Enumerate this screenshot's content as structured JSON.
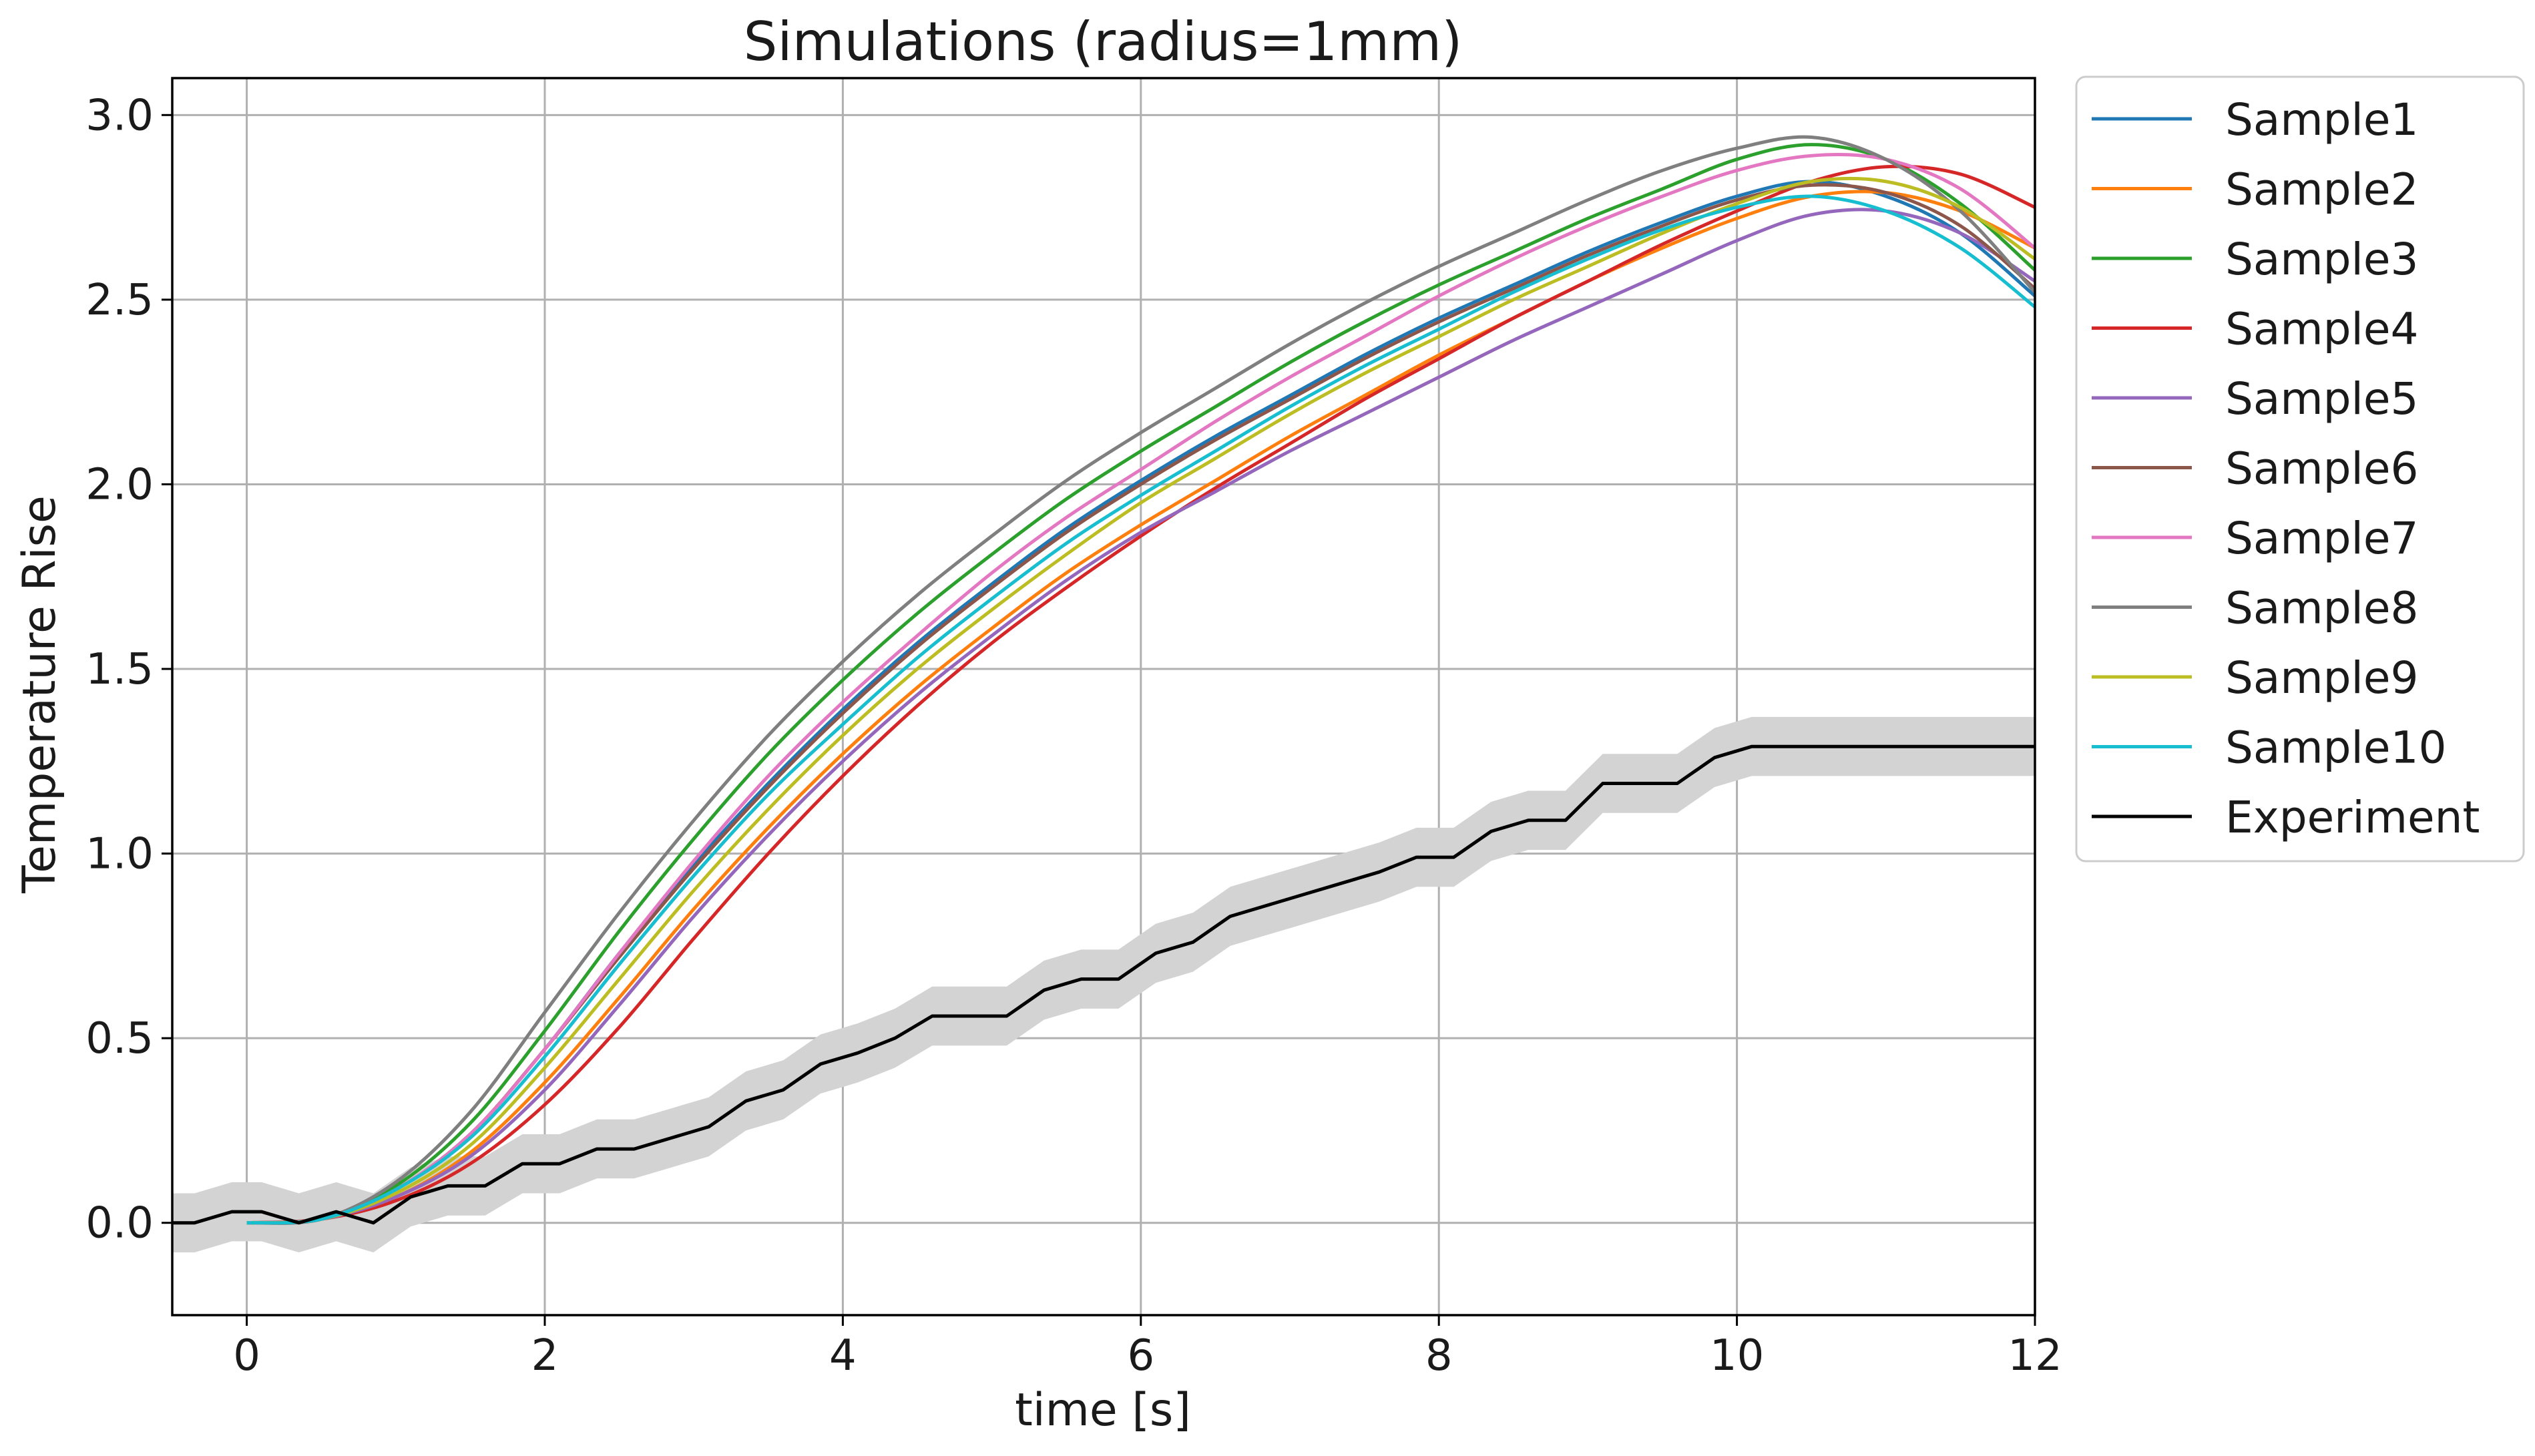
{
  "chart_data": {
    "type": "line",
    "title": "Simulations (radius=1mm)",
    "xlabel": "time [s]",
    "ylabel": "Temperature Rise",
    "xlim": [
      -0.5,
      12
    ],
    "ylim": [
      -0.25,
      3.1
    ],
    "xticks": [
      0,
      2,
      4,
      6,
      8,
      10,
      12
    ],
    "xtick_labels": [
      "0",
      "2",
      "4",
      "6",
      "8",
      "10",
      "12"
    ],
    "yticks": [
      0.0,
      0.5,
      1.0,
      1.5,
      2.0,
      2.5,
      3.0
    ],
    "ytick_labels": [
      "0.0",
      "0.5",
      "1.0",
      "1.5",
      "2.0",
      "2.5",
      "3.0"
    ],
    "grid": true,
    "legend_position": "outside-right-top",
    "x": [
      0,
      0.5,
      1,
      1.5,
      2,
      2.5,
      3,
      3.5,
      4,
      4.5,
      5,
      5.5,
      6,
      6.5,
      7,
      7.5,
      8,
      8.5,
      9,
      9.5,
      10,
      10.5,
      11,
      11.5,
      12
    ],
    "series": [
      {
        "name": "Sample1",
        "color": "#1f77b4",
        "values": [
          0,
          0.01,
          0.09,
          0.24,
          0.47,
          0.73,
          0.97,
          1.19,
          1.39,
          1.57,
          1.73,
          1.88,
          2.01,
          2.13,
          2.24,
          2.35,
          2.45,
          2.54,
          2.63,
          2.71,
          2.78,
          2.82,
          2.78,
          2.68,
          2.51
        ]
      },
      {
        "name": "Sample2",
        "color": "#ff7f0e",
        "values": [
          0,
          0.01,
          0.07,
          0.19,
          0.38,
          0.61,
          0.85,
          1.07,
          1.27,
          1.45,
          1.61,
          1.76,
          1.89,
          2.01,
          2.13,
          2.24,
          2.35,
          2.45,
          2.55,
          2.64,
          2.72,
          2.78,
          2.79,
          2.74,
          2.64
        ]
      },
      {
        "name": "Sample3",
        "color": "#2ca02c",
        "values": [
          0,
          0.01,
          0.1,
          0.27,
          0.52,
          0.79,
          1.04,
          1.27,
          1.47,
          1.65,
          1.81,
          1.96,
          2.09,
          2.21,
          2.33,
          2.44,
          2.54,
          2.63,
          2.72,
          2.8,
          2.88,
          2.92,
          2.88,
          2.76,
          2.58
        ]
      },
      {
        "name": "Sample4",
        "color": "#d62728",
        "values": [
          0,
          0.01,
          0.06,
          0.16,
          0.32,
          0.53,
          0.77,
          1.0,
          1.21,
          1.4,
          1.57,
          1.72,
          1.86,
          1.99,
          2.11,
          2.23,
          2.34,
          2.45,
          2.55,
          2.65,
          2.74,
          2.82,
          2.86,
          2.84,
          2.75
        ]
      },
      {
        "name": "Sample5",
        "color": "#9467bd",
        "values": [
          0,
          0.01,
          0.07,
          0.18,
          0.36,
          0.59,
          0.83,
          1.05,
          1.25,
          1.43,
          1.59,
          1.74,
          1.87,
          1.98,
          2.09,
          2.19,
          2.29,
          2.39,
          2.48,
          2.57,
          2.66,
          2.73,
          2.74,
          2.68,
          2.55
        ]
      },
      {
        "name": "Sample6",
        "color": "#8c564b",
        "values": [
          0,
          0.01,
          0.09,
          0.24,
          0.47,
          0.72,
          0.96,
          1.18,
          1.38,
          1.56,
          1.72,
          1.87,
          2.0,
          2.12,
          2.23,
          2.34,
          2.44,
          2.53,
          2.62,
          2.7,
          2.77,
          2.81,
          2.79,
          2.7,
          2.53
        ]
      },
      {
        "name": "Sample7",
        "color": "#e377c2",
        "values": [
          0,
          0.01,
          0.09,
          0.24,
          0.47,
          0.73,
          0.98,
          1.21,
          1.41,
          1.59,
          1.76,
          1.91,
          2.04,
          2.17,
          2.29,
          2.4,
          2.51,
          2.61,
          2.7,
          2.78,
          2.85,
          2.89,
          2.88,
          2.8,
          2.64
        ]
      },
      {
        "name": "Sample8",
        "color": "#7f7f7f",
        "values": [
          0,
          0.01,
          0.11,
          0.3,
          0.57,
          0.84,
          1.09,
          1.32,
          1.52,
          1.7,
          1.86,
          2.01,
          2.14,
          2.26,
          2.38,
          2.49,
          2.59,
          2.68,
          2.77,
          2.85,
          2.91,
          2.94,
          2.88,
          2.74,
          2.52
        ]
      },
      {
        "name": "Sample9",
        "color": "#bcbd22",
        "values": [
          0,
          0.01,
          0.08,
          0.21,
          0.42,
          0.66,
          0.9,
          1.12,
          1.32,
          1.5,
          1.66,
          1.81,
          1.95,
          2.07,
          2.19,
          2.3,
          2.4,
          2.5,
          2.59,
          2.68,
          2.76,
          2.82,
          2.82,
          2.75,
          2.61
        ]
      },
      {
        "name": "Sample10",
        "color": "#17becf",
        "values": [
          0,
          0.01,
          0.09,
          0.23,
          0.45,
          0.7,
          0.94,
          1.16,
          1.35,
          1.53,
          1.69,
          1.84,
          1.97,
          2.09,
          2.21,
          2.32,
          2.42,
          2.52,
          2.61,
          2.69,
          2.75,
          2.78,
          2.74,
          2.64,
          2.48
        ]
      }
    ],
    "experiment": {
      "name": "Experiment",
      "color": "#000000",
      "band_color": "#d3d3d3",
      "band_halfwidth": 0.08,
      "x": [
        -0.5,
        -0.35,
        -0.1,
        0.1,
        0.35,
        0.6,
        0.85,
        1.1,
        1.35,
        1.6,
        1.85,
        2.1,
        2.35,
        2.6,
        2.85,
        3.1,
        3.35,
        3.6,
        3.85,
        4.1,
        4.35,
        4.6,
        4.85,
        5.1,
        5.35,
        5.6,
        5.85,
        6.1,
        6.35,
        6.6,
        6.85,
        7.1,
        7.35,
        7.6,
        7.85,
        8.1,
        8.35,
        8.6,
        8.85,
        9.1,
        9.35,
        9.6,
        9.85,
        10.1,
        10.35,
        10.6,
        10.85,
        11.1,
        11.35,
        11.6,
        11.85,
        12.0
      ],
      "values": [
        0.0,
        0.0,
        0.03,
        0.03,
        0.0,
        0.03,
        0.0,
        0.07,
        0.1,
        0.1,
        0.16,
        0.16,
        0.2,
        0.2,
        0.23,
        0.26,
        0.33,
        0.36,
        0.43,
        0.46,
        0.5,
        0.56,
        0.56,
        0.56,
        0.63,
        0.66,
        0.66,
        0.73,
        0.76,
        0.83,
        0.86,
        0.89,
        0.92,
        0.95,
        0.99,
        0.99,
        1.06,
        1.09,
        1.09,
        1.19,
        1.19,
        1.19,
        1.26,
        1.29,
        1.29,
        1.29,
        1.29,
        1.29,
        1.29,
        1.29,
        1.29,
        1.29
      ]
    }
  }
}
